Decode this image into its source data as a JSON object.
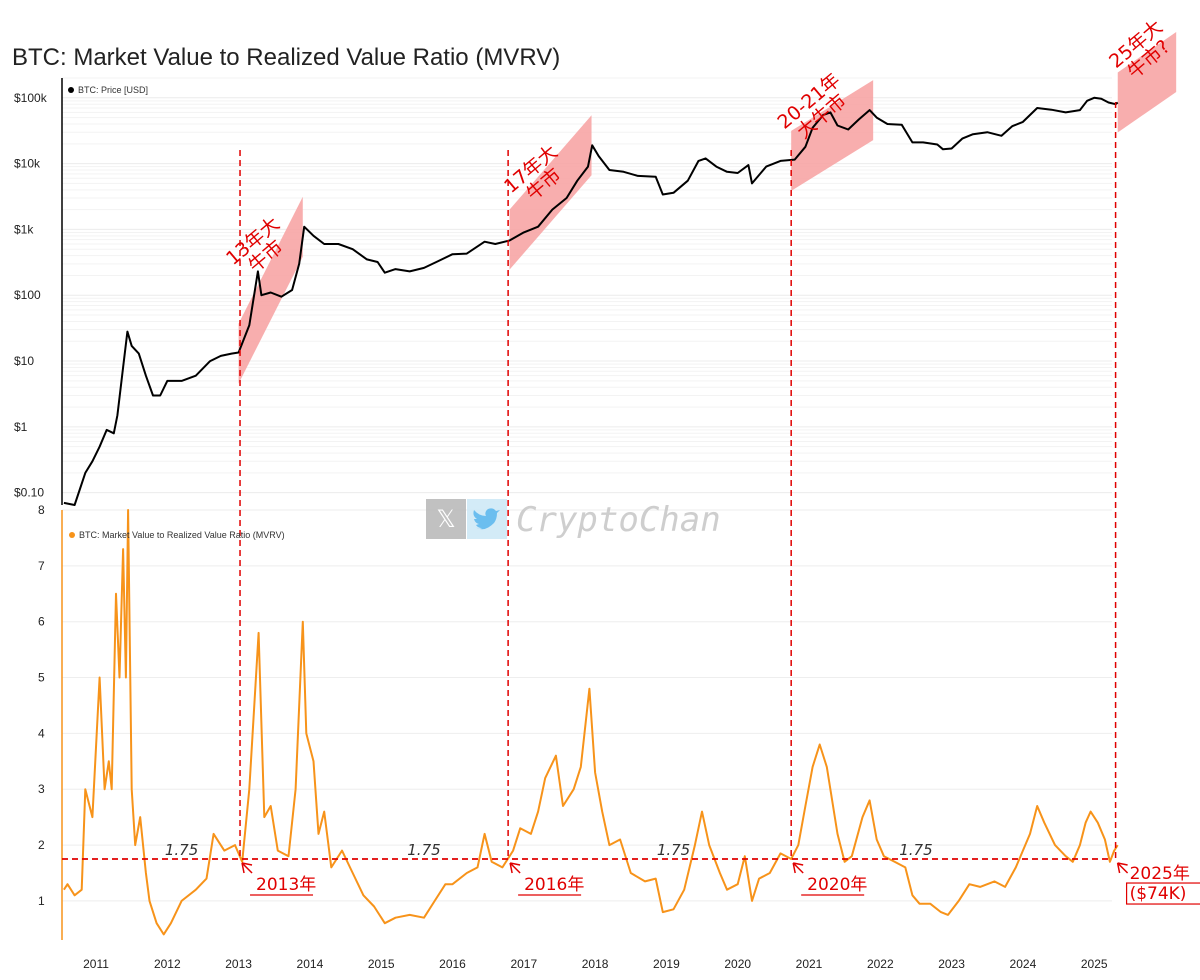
{
  "title": "BTC: Market Value to Realized Value Ratio (MVRV)",
  "watermark": {
    "text": "CryptoChan",
    "icons": [
      "x-logo-icon",
      "twitter-bird-icon"
    ]
  },
  "colors": {
    "price": "#000000",
    "mvrv": "#f7931a",
    "annotation": "#e00000",
    "highlight": "#f7a0a0"
  },
  "chart_data": [
    {
      "type": "line",
      "panel": "top",
      "scale": "log",
      "legend": "BTC: Price [USD]",
      "legend_position": "top-left",
      "ylim": [
        0.065,
        200000
      ],
      "y_ticks": [
        {
          "value": 0.1,
          "label": "$0.10"
        },
        {
          "value": 1,
          "label": "$1"
        },
        {
          "value": 10,
          "label": "$10"
        },
        {
          "value": 100,
          "label": "$100"
        },
        {
          "value": 1000,
          "label": "$1k"
        },
        {
          "value": 10000,
          "label": "$10k"
        },
        {
          "value": 100000,
          "label": "$100k"
        }
      ],
      "series": [
        {
          "points": [
            [
              2010.55,
              0.07
            ],
            [
              2010.7,
              0.065
            ],
            [
              2010.85,
              0.2
            ],
            [
              2010.95,
              0.3
            ],
            [
              2011.05,
              0.5
            ],
            [
              2011.15,
              0.9
            ],
            [
              2011.25,
              0.8
            ],
            [
              2011.3,
              1.5
            ],
            [
              2011.38,
              8
            ],
            [
              2011.44,
              28
            ],
            [
              2011.5,
              17
            ],
            [
              2011.6,
              13
            ],
            [
              2011.7,
              6
            ],
            [
              2011.8,
              3
            ],
            [
              2011.9,
              3
            ],
            [
              2012.0,
              5
            ],
            [
              2012.2,
              5
            ],
            [
              2012.4,
              6
            ],
            [
              2012.6,
              10
            ],
            [
              2012.75,
              12
            ],
            [
              2012.9,
              13
            ],
            [
              2013.0,
              13.5
            ],
            [
              2013.15,
              35
            ],
            [
              2013.27,
              230
            ],
            [
              2013.32,
              100
            ],
            [
              2013.45,
              110
            ],
            [
              2013.6,
              95
            ],
            [
              2013.75,
              120
            ],
            [
              2013.85,
              300
            ],
            [
              2013.92,
              1100
            ],
            [
              2014.05,
              800
            ],
            [
              2014.2,
              600
            ],
            [
              2014.4,
              600
            ],
            [
              2014.6,
              500
            ],
            [
              2014.8,
              350
            ],
            [
              2014.95,
              320
            ],
            [
              2015.05,
              220
            ],
            [
              2015.2,
              250
            ],
            [
              2015.4,
              230
            ],
            [
              2015.6,
              260
            ],
            [
              2015.8,
              330
            ],
            [
              2016.0,
              420
            ],
            [
              2016.2,
              430
            ],
            [
              2016.45,
              650
            ],
            [
              2016.6,
              600
            ],
            [
              2016.8,
              680
            ],
            [
              2017.0,
              900
            ],
            [
              2017.2,
              1100
            ],
            [
              2017.4,
              2000
            ],
            [
              2017.6,
              3000
            ],
            [
              2017.75,
              5500
            ],
            [
              2017.9,
              9000
            ],
            [
              2017.96,
              19000
            ],
            [
              2018.05,
              13000
            ],
            [
              2018.2,
              8000
            ],
            [
              2018.4,
              7500
            ],
            [
              2018.6,
              6500
            ],
            [
              2018.85,
              6300
            ],
            [
              2018.95,
              3400
            ],
            [
              2019.1,
              3600
            ],
            [
              2019.3,
              5500
            ],
            [
              2019.45,
              11000
            ],
            [
              2019.55,
              12000
            ],
            [
              2019.7,
              9000
            ],
            [
              2019.85,
              7500
            ],
            [
              2020.0,
              7200
            ],
            [
              2020.15,
              9500
            ],
            [
              2020.2,
              5000
            ],
            [
              2020.4,
              9000
            ],
            [
              2020.6,
              11000
            ],
            [
              2020.8,
              11500
            ],
            [
              2020.95,
              18000
            ],
            [
              2021.05,
              35000
            ],
            [
              2021.2,
              55000
            ],
            [
              2021.3,
              60000
            ],
            [
              2021.4,
              38000
            ],
            [
              2021.55,
              33000
            ],
            [
              2021.7,
              47000
            ],
            [
              2021.85,
              65000
            ],
            [
              2021.95,
              50000
            ],
            [
              2022.1,
              40000
            ],
            [
              2022.3,
              39000
            ],
            [
              2022.45,
              21000
            ],
            [
              2022.6,
              21000
            ],
            [
              2022.8,
              19500
            ],
            [
              2022.88,
              16500
            ],
            [
              2023.0,
              17000
            ],
            [
              2023.15,
              24000
            ],
            [
              2023.3,
              28000
            ],
            [
              2023.5,
              30000
            ],
            [
              2023.7,
              26500
            ],
            [
              2023.85,
              37000
            ],
            [
              2024.0,
              43000
            ],
            [
              2024.2,
              70000
            ],
            [
              2024.4,
              66000
            ],
            [
              2024.6,
              60000
            ],
            [
              2024.8,
              65000
            ],
            [
              2024.9,
              90000
            ],
            [
              2025.0,
              100000
            ],
            [
              2025.1,
              97000
            ],
            [
              2025.2,
              85000
            ],
            [
              2025.3,
              80000
            ],
            [
              2025.33,
              85000
            ]
          ]
        }
      ]
    },
    {
      "type": "line",
      "panel": "bottom",
      "legend": "BTC: Market Value to Realized Value Ratio (MVRV)",
      "legend_position": "top-left",
      "ylim": [
        0.3,
        8
      ],
      "y_ticks": [
        1,
        2,
        3,
        4,
        5,
        6,
        7,
        8
      ],
      "x_ticks": [
        2011,
        2012,
        2013,
        2014,
        2015,
        2016,
        2017,
        2018,
        2019,
        2020,
        2021,
        2022,
        2023,
        2024,
        2025
      ],
      "threshold": {
        "value": 1.75,
        "label": "1.75"
      },
      "series": [
        {
          "points": [
            [
              2010.55,
              1.2
            ],
            [
              2010.6,
              1.3
            ],
            [
              2010.7,
              1.1
            ],
            [
              2010.8,
              1.2
            ],
            [
              2010.85,
              3.0
            ],
            [
              2010.95,
              2.5
            ],
            [
              2011.05,
              5.0
            ],
            [
              2011.12,
              3.0
            ],
            [
              2011.18,
              3.5
            ],
            [
              2011.22,
              3.0
            ],
            [
              2011.28,
              6.5
            ],
            [
              2011.33,
              5.0
            ],
            [
              2011.38,
              7.3
            ],
            [
              2011.42,
              5.0
            ],
            [
              2011.45,
              8.0
            ],
            [
              2011.5,
              3.0
            ],
            [
              2011.55,
              2.0
            ],
            [
              2011.62,
              2.5
            ],
            [
              2011.7,
              1.5
            ],
            [
              2011.75,
              1.0
            ],
            [
              2011.85,
              0.6
            ],
            [
              2011.95,
              0.4
            ],
            [
              2012.05,
              0.6
            ],
            [
              2012.2,
              1.0
            ],
            [
              2012.4,
              1.2
            ],
            [
              2012.55,
              1.4
            ],
            [
              2012.65,
              2.2
            ],
            [
              2012.8,
              1.9
            ],
            [
              2012.95,
              2.0
            ],
            [
              2013.05,
              1.7
            ],
            [
              2013.15,
              3.0
            ],
            [
              2013.28,
              5.8
            ],
            [
              2013.36,
              2.5
            ],
            [
              2013.45,
              2.7
            ],
            [
              2013.55,
              1.9
            ],
            [
              2013.7,
              1.8
            ],
            [
              2013.8,
              3.0
            ],
            [
              2013.9,
              6.0
            ],
            [
              2013.95,
              4.0
            ],
            [
              2014.05,
              3.5
            ],
            [
              2014.12,
              2.2
            ],
            [
              2014.2,
              2.6
            ],
            [
              2014.3,
              1.6
            ],
            [
              2014.45,
              1.9
            ],
            [
              2014.6,
              1.5
            ],
            [
              2014.75,
              1.1
            ],
            [
              2014.9,
              0.9
            ],
            [
              2015.05,
              0.6
            ],
            [
              2015.2,
              0.7
            ],
            [
              2015.4,
              0.75
            ],
            [
              2015.6,
              0.7
            ],
            [
              2015.75,
              1.0
            ],
            [
              2015.9,
              1.3
            ],
            [
              2016.0,
              1.3
            ],
            [
              2016.2,
              1.5
            ],
            [
              2016.35,
              1.6
            ],
            [
              2016.45,
              2.2
            ],
            [
              2016.55,
              1.7
            ],
            [
              2016.7,
              1.6
            ],
            [
              2016.85,
              1.9
            ],
            [
              2016.95,
              2.3
            ],
            [
              2017.1,
              2.2
            ],
            [
              2017.2,
              2.6
            ],
            [
              2017.3,
              3.2
            ],
            [
              2017.45,
              3.6
            ],
            [
              2017.55,
              2.7
            ],
            [
              2017.7,
              3.0
            ],
            [
              2017.8,
              3.4
            ],
            [
              2017.92,
              4.8
            ],
            [
              2018.0,
              3.3
            ],
            [
              2018.1,
              2.6
            ],
            [
              2018.2,
              2.0
            ],
            [
              2018.35,
              2.1
            ],
            [
              2018.5,
              1.5
            ],
            [
              2018.7,
              1.35
            ],
            [
              2018.85,
              1.4
            ],
            [
              2018.95,
              0.8
            ],
            [
              2019.1,
              0.85
            ],
            [
              2019.25,
              1.2
            ],
            [
              2019.4,
              2.0
            ],
            [
              2019.5,
              2.6
            ],
            [
              2019.6,
              2.0
            ],
            [
              2019.75,
              1.5
            ],
            [
              2019.85,
              1.2
            ],
            [
              2020.0,
              1.3
            ],
            [
              2020.1,
              1.8
            ],
            [
              2020.2,
              1.0
            ],
            [
              2020.3,
              1.4
            ],
            [
              2020.45,
              1.5
            ],
            [
              2020.6,
              1.85
            ],
            [
              2020.75,
              1.75
            ],
            [
              2020.85,
              2.0
            ],
            [
              2020.95,
              2.7
            ],
            [
              2021.05,
              3.4
            ],
            [
              2021.15,
              3.8
            ],
            [
              2021.25,
              3.4
            ],
            [
              2021.4,
              2.2
            ],
            [
              2021.5,
              1.7
            ],
            [
              2021.6,
              1.8
            ],
            [
              2021.75,
              2.5
            ],
            [
              2021.85,
              2.8
            ],
            [
              2021.95,
              2.1
            ],
            [
              2022.05,
              1.8
            ],
            [
              2022.2,
              1.7
            ],
            [
              2022.35,
              1.6
            ],
            [
              2022.45,
              1.1
            ],
            [
              2022.55,
              0.95
            ],
            [
              2022.7,
              0.95
            ],
            [
              2022.85,
              0.8
            ],
            [
              2022.95,
              0.75
            ],
            [
              2023.1,
              1.0
            ],
            [
              2023.25,
              1.3
            ],
            [
              2023.4,
              1.25
            ],
            [
              2023.6,
              1.35
            ],
            [
              2023.75,
              1.25
            ],
            [
              2023.9,
              1.6
            ],
            [
              2024.0,
              1.9
            ],
            [
              2024.1,
              2.2
            ],
            [
              2024.2,
              2.7
            ],
            [
              2024.3,
              2.4
            ],
            [
              2024.45,
              2.0
            ],
            [
              2024.6,
              1.8
            ],
            [
              2024.7,
              1.7
            ],
            [
              2024.8,
              2.0
            ],
            [
              2024.88,
              2.4
            ],
            [
              2024.95,
              2.6
            ],
            [
              2025.05,
              2.4
            ],
            [
              2025.15,
              2.1
            ],
            [
              2025.22,
              1.7
            ],
            [
              2025.28,
              1.9
            ],
            [
              2025.33,
              2.0
            ]
          ]
        }
      ]
    }
  ],
  "highlights": [
    {
      "label_lines": [
        "13年大",
        "牛市"
      ],
      "from": [
        2013.0,
        13
      ],
      "to": [
        2013.9,
        1100
      ]
    },
    {
      "label_lines": [
        "17年大",
        "牛市"
      ],
      "from": [
        2016.8,
        700
      ],
      "to": [
        2017.95,
        19000
      ]
    },
    {
      "label_lines": [
        "20-21年",
        "大牛市"
      ],
      "from": [
        2020.75,
        11000
      ],
      "to": [
        2021.9,
        65000
      ]
    },
    {
      "label_lines": [
        "25年大",
        "牛市?"
      ],
      "from": [
        2025.33,
        85000
      ],
      "to": [
        2026.15,
        350000
      ]
    }
  ],
  "vertical_markers": [
    {
      "x": 2013.02,
      "label": "2013年"
    },
    {
      "x": 2016.78,
      "label": "2016年"
    },
    {
      "x": 2020.75,
      "label": "2020年"
    },
    {
      "x": 2025.3,
      "label": "2025年",
      "sublabel": "($74K)"
    }
  ]
}
